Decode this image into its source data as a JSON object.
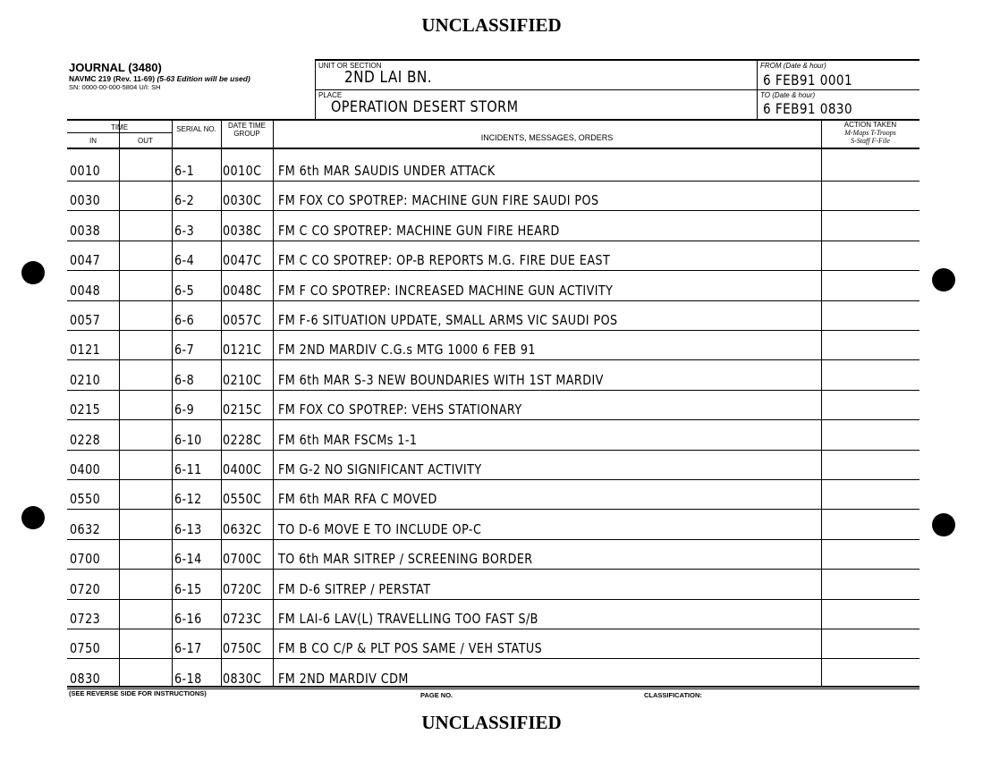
{
  "classification_top": "UNCLASSIFIED",
  "classification_bottom": "UNCLASSIFIED",
  "form": {
    "title": "JOURNAL (3480)",
    "form_no": "NAVMC 219 (Rev. 11-69)",
    "edition_note": "(5-63 Edition will be used)",
    "sn": "SN: 0000-00-000-5804 U/I: SH"
  },
  "header": {
    "unit_label": "UNIT OR SECTION",
    "unit_value": "2ND LAI BN.",
    "place_label": "PLACE",
    "place_value": "OPERATION DESERT STORM",
    "from_label": "FROM (Date & hour)",
    "from_value": "6 FEB91 0001",
    "to_label": "TO (Date & hour)",
    "to_value": "6 FEB91 0830"
  },
  "columns": {
    "time": "TIME",
    "in": "IN",
    "out": "OUT",
    "serial": "SERIAL NO.",
    "dtg": "DATE TIME GROUP",
    "incidents": "INCIDENTS, MESSAGES, ORDERS",
    "action": "ACTION TAKEN",
    "action_key1": "M-Maps   T-Troops",
    "action_key2": "S-Staff   F-File"
  },
  "rows": [
    {
      "in": "0010",
      "serial": "6-1",
      "dtg": "0010C",
      "text": "FM 6th MAR   SAUDIS UNDER ATTACK"
    },
    {
      "in": "0030",
      "serial": "6-2",
      "dtg": "0030C",
      "text": "FM FOX CO SPOTREP: MACHINE GUN FIRE SAUDI POS"
    },
    {
      "in": "0038",
      "serial": "6-3",
      "dtg": "0038C",
      "text": "FM C CO SPOTREP:  MACHINE GUN FIRE HEARD"
    },
    {
      "in": "0047",
      "serial": "6-4",
      "dtg": "0047C",
      "text": "FM C CO  SPOTREP:  OP-B REPORTS M.G. FIRE DUE EAST"
    },
    {
      "in": "0048",
      "serial": "6-5",
      "dtg": "0048C",
      "text": "FM F CO  SPOTREP:  INCREASED MACHINE GUN ACTIVITY"
    },
    {
      "in": "0057",
      "serial": "6-6",
      "dtg": "0057C",
      "text": "FM F-6   SITUATION UPDATE, SMALL ARMS VIC SAUDI POS"
    },
    {
      "in": "0121",
      "serial": "6-7",
      "dtg": "0121C",
      "text": "FM 2ND MARDIV     C.G.s MTG 1000 6 FEB 91"
    },
    {
      "in": "0210",
      "serial": "6-8",
      "dtg": "0210C",
      "text": "FM 6th MAR S-3   NEW BOUNDARIES WITH 1ST MARDIV"
    },
    {
      "in": "0215",
      "serial": "6-9",
      "dtg": "0215C",
      "text": "FM FOX CO SPOTREP: VEHS STATIONARY"
    },
    {
      "in": "0228",
      "serial": "6-10",
      "dtg": "0228C",
      "text": "FM 6th MAR   FSCMs 1-1"
    },
    {
      "in": "0400",
      "serial": "6-11",
      "dtg": "0400C",
      "text": "FM G-2     NO SIGNIFICANT ACTIVITY"
    },
    {
      "in": "0550",
      "serial": "6-12",
      "dtg": "0550C",
      "text": "FM 6th MAR    RFA C MOVED"
    },
    {
      "in": "0632",
      "serial": "6-13",
      "dtg": "0632C",
      "text": "TO D-6       MOVE E TO INCLUDE OP-C"
    },
    {
      "in": "0700",
      "serial": "6-14",
      "dtg": "0700C",
      "text": "TO 6th MAR     SITREP / SCREENING BORDER"
    },
    {
      "in": "0720",
      "serial": "6-15",
      "dtg": "0720C",
      "text": "FM D-6       SITREP / PERSTAT"
    },
    {
      "in": "0723",
      "serial": "6-16",
      "dtg": "0723C",
      "text": "FM LAI-6    LAV(L) TRAVELLING TOO FAST S/B"
    },
    {
      "in": "0750",
      "serial": "6-17",
      "dtg": "0750C",
      "text": "FM B CO    C/P & PLT POS SAME / VEH STATUS"
    },
    {
      "in": "0830",
      "serial": "6-18",
      "dtg": "0830C",
      "text": "FM 2ND MARDIV  CDM"
    }
  ],
  "footer": {
    "instructions": "(SEE REVERSE SIDE FOR INSTRUCTIONS)",
    "page_no": "PAGE NO.",
    "classification": "CLASSIFICATION:"
  }
}
